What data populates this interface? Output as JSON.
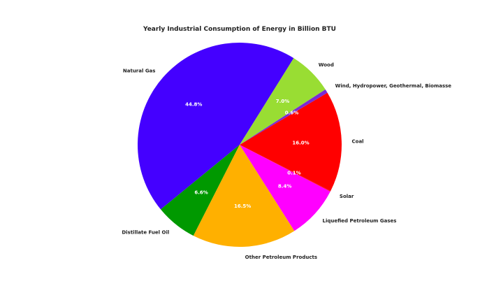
{
  "chart_data": {
    "type": "pie",
    "title": "Yearly Industrial Consumption of Energy in Billion BTU",
    "slices": [
      {
        "label": "Natural Gas",
        "value": 44.8,
        "pct_label": "44.8%",
        "color": "#4400ff"
      },
      {
        "label": "Distillate Fuel Oil",
        "value": 6.6,
        "pct_label": "6.6%",
        "color": "#009900"
      },
      {
        "label": "Other Petroleum Products",
        "value": 16.5,
        "pct_label": "16.5%",
        "color": "#ffb000"
      },
      {
        "label": "Liquefied Petroleum Gases",
        "value": 8.4,
        "pct_label": "8.4%",
        "color": "#ff00ff"
      },
      {
        "label": "Solar",
        "value": 0.1,
        "pct_label": "0.1%",
        "color": "#ff0044"
      },
      {
        "label": "Coal",
        "value": 16.0,
        "pct_label": "16.0%",
        "color": "#ff0000"
      },
      {
        "label": "Wind, Hydropower, Geothermal, Biomasse",
        "value": 0.6,
        "pct_label": "0.6%",
        "color": "#7a2bd6"
      },
      {
        "label": "Wood",
        "value": 7.0,
        "pct_label": "7.0%",
        "color": "#99dd33"
      }
    ]
  }
}
